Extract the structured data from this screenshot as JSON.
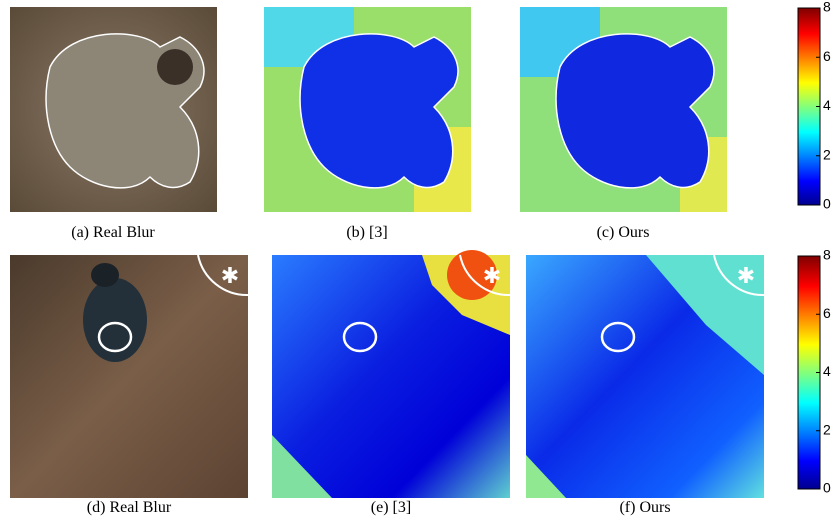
{
  "rows": [
    {
      "panels": [
        {
          "caption": "(a) Real Blur"
        },
        {
          "caption": "(b) [3]"
        },
        {
          "caption": "(c) Ours"
        }
      ],
      "colorbar": {
        "ticks": [
          0,
          2,
          4,
          6,
          8
        ]
      }
    },
    {
      "panels": [
        {
          "caption": "(d) Real Blur"
        },
        {
          "caption": "(e) [3]"
        },
        {
          "caption": "(f) Ours"
        }
      ],
      "colorbar": {
        "ticks": [
          0,
          2,
          4,
          6,
          8
        ]
      }
    }
  ]
}
